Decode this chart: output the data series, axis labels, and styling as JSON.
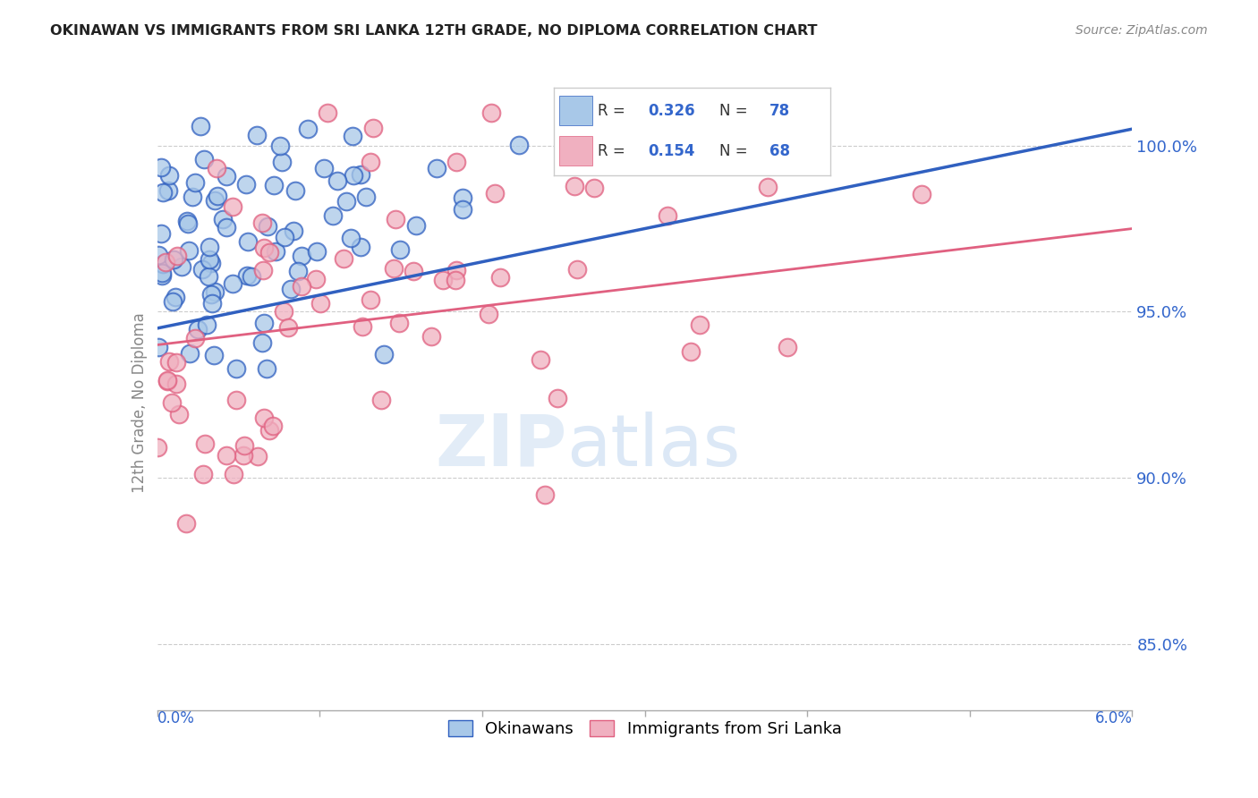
{
  "title": "OKINAWAN VS IMMIGRANTS FROM SRI LANKA 12TH GRADE, NO DIPLOMA CORRELATION CHART",
  "source": "Source: ZipAtlas.com",
  "ylabel": "12th Grade, No Diploma",
  "xmin": 0.0,
  "xmax": 6.0,
  "ymin": 83.0,
  "ymax": 101.5,
  "yticks": [
    85.0,
    90.0,
    95.0,
    100.0
  ],
  "ytick_labels": [
    "85.0%",
    "90.0%",
    "95.0%",
    "100.0%"
  ],
  "blue_R": 0.326,
  "blue_N": 78,
  "pink_R": 0.154,
  "pink_N": 68,
  "blue_color": "#a8c8e8",
  "pink_color": "#f0b0c0",
  "blue_line_color": "#3060c0",
  "pink_line_color": "#e06080",
  "legend_blue_label": "Okinawans",
  "legend_pink_label": "Immigrants from Sri Lanka",
  "blue_line_x0": 0.0,
  "blue_line_y0": 94.5,
  "blue_line_x1": 6.0,
  "blue_line_y1": 100.5,
  "pink_line_x0": 0.0,
  "pink_line_y0": 94.0,
  "pink_line_x1": 6.0,
  "pink_line_y1": 97.5
}
